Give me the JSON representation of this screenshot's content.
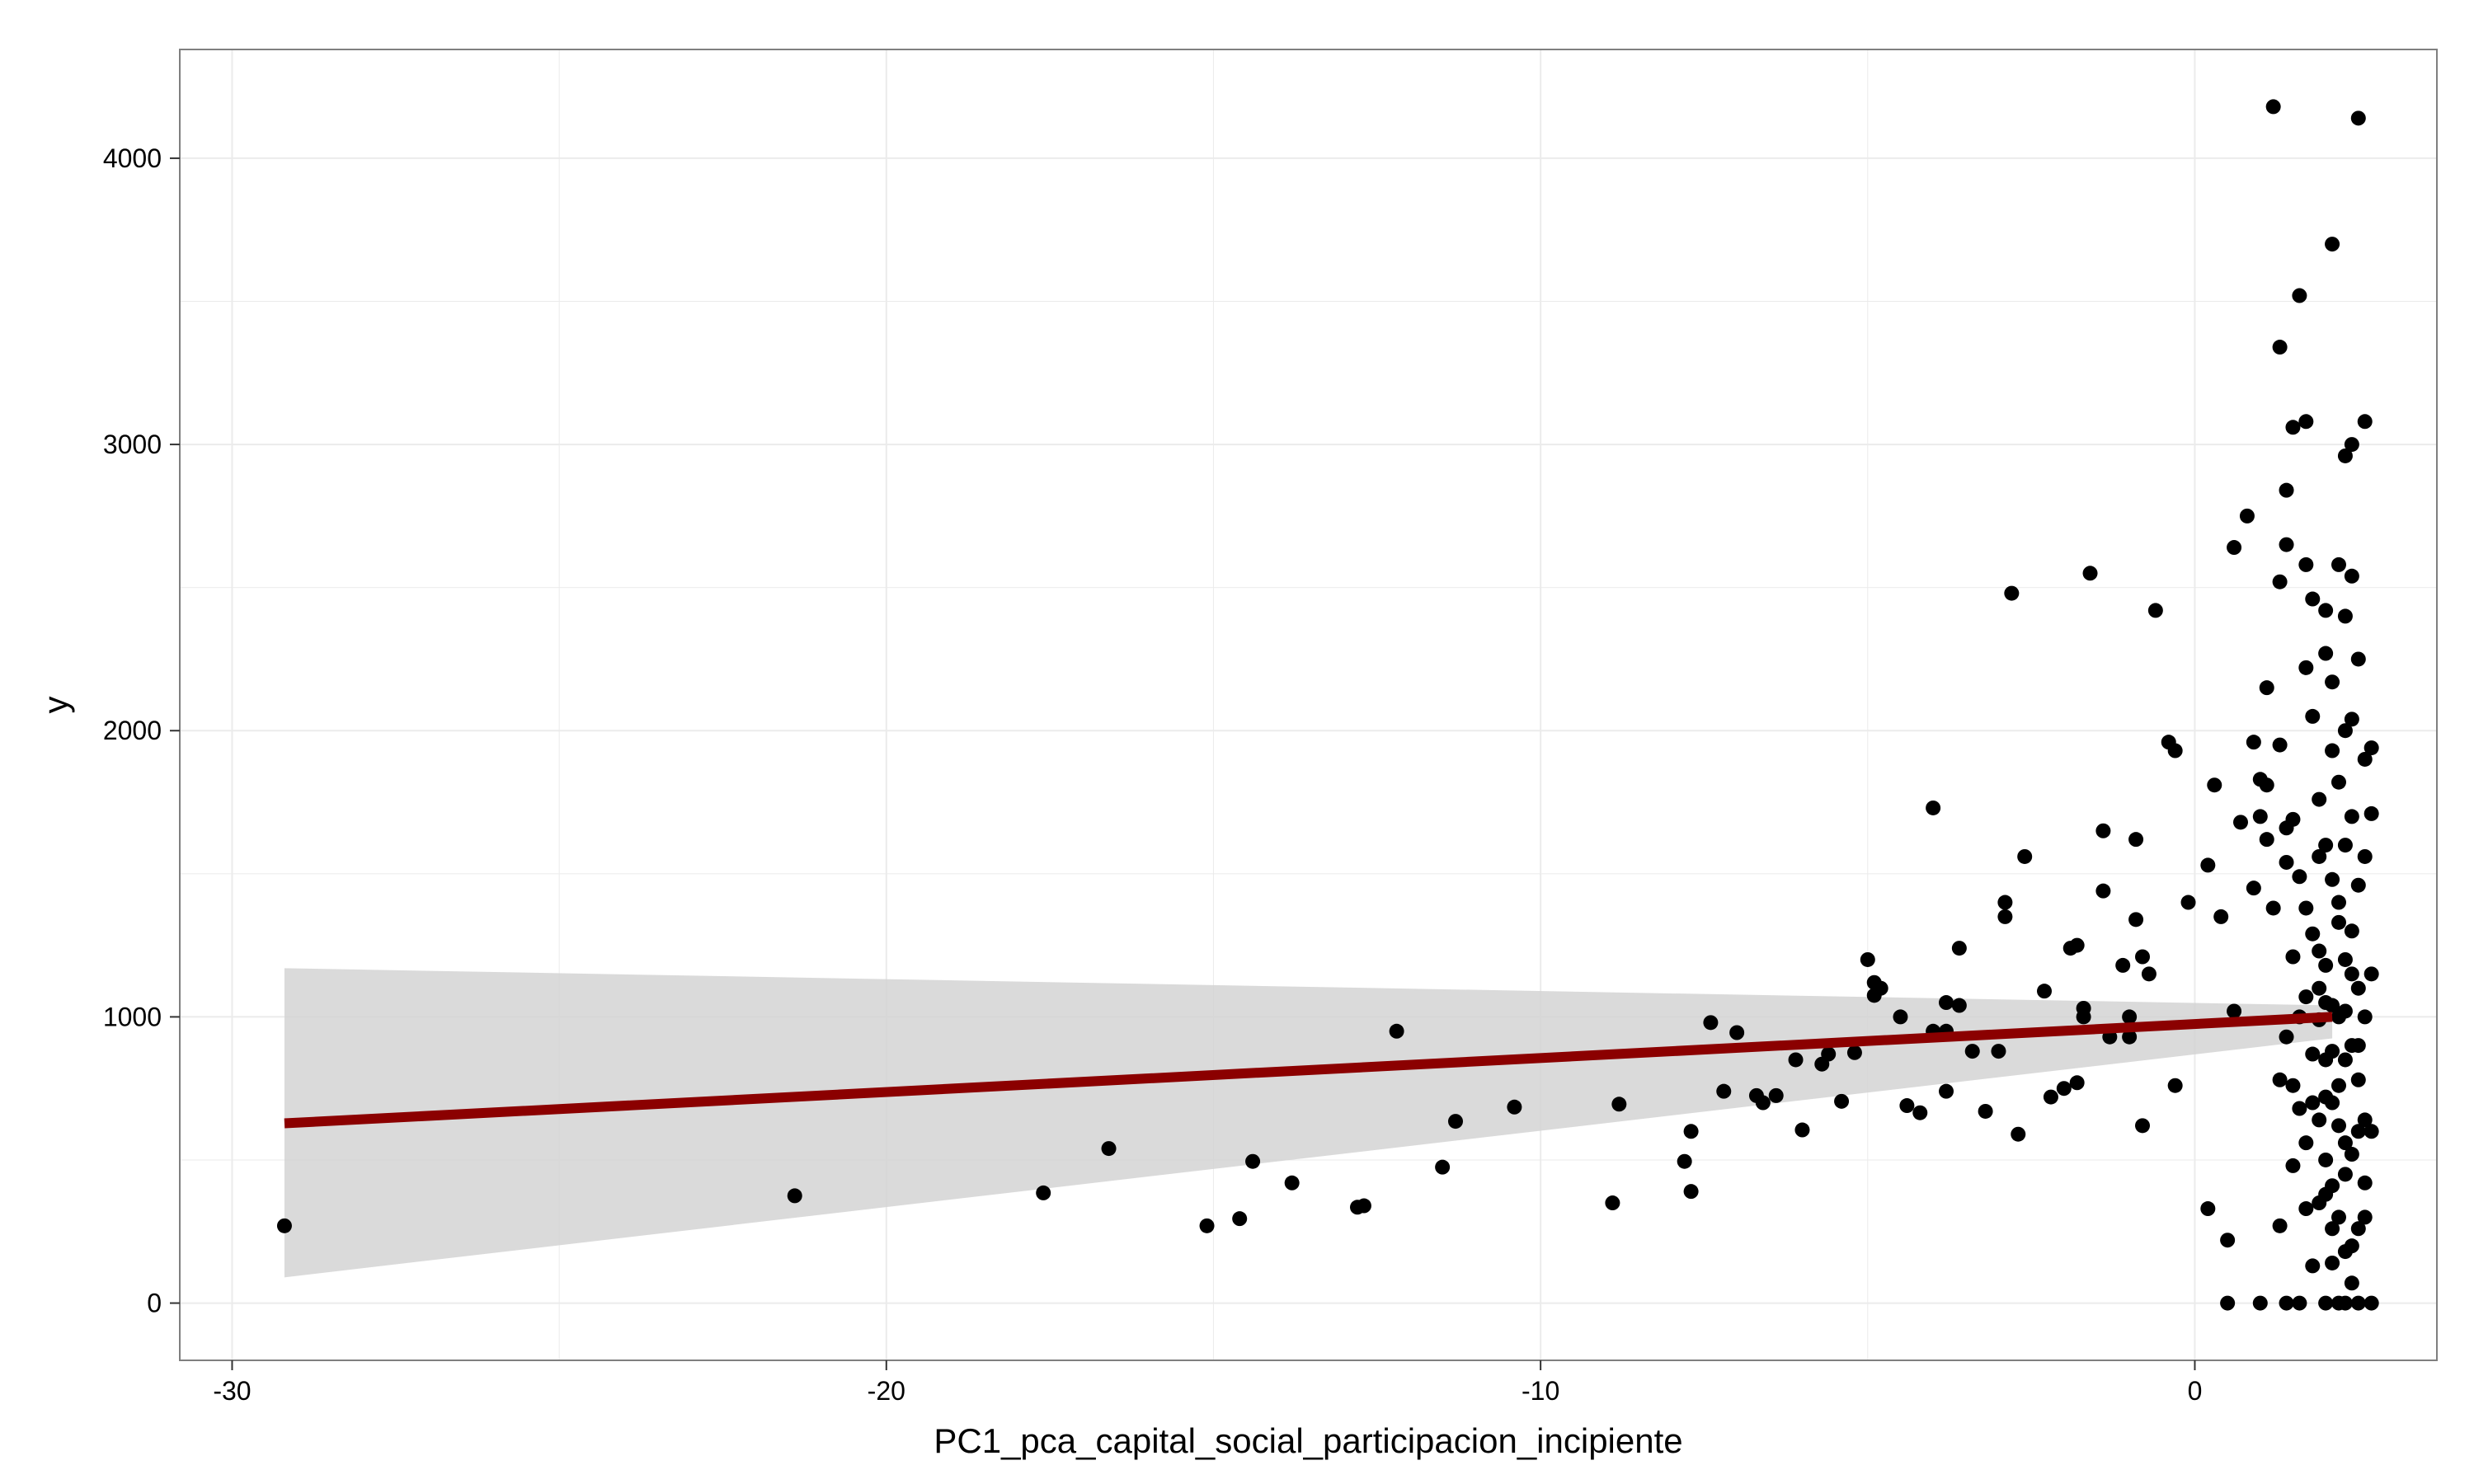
{
  "chart_data": {
    "type": "scatter",
    "title": "",
    "xlabel": "PC1_pca_capital_social_participacion_incipiente",
    "ylabel": "y",
    "xlim": [
      -30.8,
      3.7
    ],
    "ylim": [
      -200,
      4380
    ],
    "x_ticks": [
      -30,
      -20,
      -10,
      0
    ],
    "x_tick_labels": [
      "-30",
      "-20",
      "-10",
      "0"
    ],
    "y_ticks": [
      0,
      1000,
      2000,
      3000,
      4000
    ],
    "y_tick_labels": [
      "0",
      "1000",
      "2000",
      "3000",
      "4000"
    ],
    "grid": true,
    "legend": "none",
    "colors": {
      "points": "#000000",
      "fit_line": "#8b0000",
      "confidence_band": "#d3d3d3",
      "grid": "#ebebeb",
      "panel_border": "#7f7f7f"
    },
    "fit": {
      "method": "linear",
      "x_range": [
        -29.2,
        2.1
      ],
      "y_start": 628,
      "y_end": 1000,
      "band_lower": [
        [
          -29.2,
          90
        ],
        [
          2.1,
          925
        ]
      ],
      "band_upper": [
        [
          -29.2,
          1170
        ],
        [
          2.1,
          1040
        ]
      ]
    },
    "points": [
      [
        -29.2,
        270
      ],
      [
        -21.4,
        375
      ],
      [
        -17.6,
        385
      ],
      [
        -16.6,
        540
      ],
      [
        -15.1,
        270
      ],
      [
        -14.6,
        295
      ],
      [
        -14.4,
        495
      ],
      [
        -13.8,
        420
      ],
      [
        -12.8,
        335
      ],
      [
        -12.7,
        340
      ],
      [
        -12.2,
        950
      ],
      [
        -11.5,
        475
      ],
      [
        -11.3,
        635
      ],
      [
        -10.4,
        685
      ],
      [
        -8.9,
        350
      ],
      [
        -8.8,
        695
      ],
      [
        -7.8,
        495
      ],
      [
        -7.7,
        390
      ],
      [
        -7.7,
        600
      ],
      [
        -7.4,
        980
      ],
      [
        -7.2,
        740
      ],
      [
        -7.0,
        945
      ],
      [
        -6.7,
        725
      ],
      [
        -6.6,
        700
      ],
      [
        -6.4,
        725
      ],
      [
        -6.1,
        850
      ],
      [
        -6.0,
        605
      ],
      [
        -5.7,
        835
      ],
      [
        -5.6,
        870
      ],
      [
        -5.4,
        705
      ],
      [
        -5.2,
        875
      ],
      [
        -5.0,
        1200
      ],
      [
        -4.9,
        1075
      ],
      [
        -4.9,
        1120
      ],
      [
        -4.8,
        1100
      ],
      [
        -4.4,
        690
      ],
      [
        -4.5,
        1000
      ],
      [
        -4.2,
        665
      ],
      [
        -4.0,
        950
      ],
      [
        -3.8,
        950
      ],
      [
        -4.0,
        1730
      ],
      [
        -3.8,
        740
      ],
      [
        -3.8,
        1050
      ],
      [
        -3.6,
        1040
      ],
      [
        -3.6,
        1240
      ],
      [
        -3.4,
        880
      ],
      [
        -3.2,
        670
      ],
      [
        -3.0,
        880
      ],
      [
        -2.9,
        1350
      ],
      [
        -2.9,
        1400
      ],
      [
        -2.8,
        2480
      ],
      [
        -2.7,
        590
      ],
      [
        -2.6,
        1560
      ],
      [
        -2.3,
        1090
      ],
      [
        -2.2,
        720
      ],
      [
        -2.0,
        750
      ],
      [
        -1.9,
        1240
      ],
      [
        -1.8,
        1250
      ],
      [
        -1.8,
        770
      ],
      [
        -1.7,
        1030
      ],
      [
        -1.7,
        1000
      ],
      [
        -1.6,
        2550
      ],
      [
        -1.4,
        1650
      ],
      [
        -1.4,
        1440
      ],
      [
        -1.3,
        930
      ],
      [
        -1.1,
        1180
      ],
      [
        -1.0,
        1000
      ],
      [
        -1.0,
        930
      ],
      [
        -0.9,
        1620
      ],
      [
        -0.9,
        1340
      ],
      [
        -0.8,
        1210
      ],
      [
        -0.8,
        620
      ],
      [
        -0.7,
        1150
      ],
      [
        -0.6,
        2420
      ],
      [
        -0.4,
        1960
      ],
      [
        -0.3,
        1930
      ],
      [
        -0.3,
        760
      ],
      [
        -0.1,
        1400
      ],
      [
        0.2,
        1530
      ],
      [
        0.2,
        330
      ],
      [
        0.3,
        1810
      ],
      [
        0.4,
        1350
      ],
      [
        0.5,
        220
      ],
      [
        0.6,
        2640
      ],
      [
        0.6,
        1020
      ],
      [
        0.5,
        0
      ],
      [
        0.7,
        1680
      ],
      [
        0.8,
        2750
      ],
      [
        0.9,
        1960
      ],
      [
        0.9,
        1450
      ],
      [
        1.0,
        1830
      ],
      [
        1.0,
        1700
      ],
      [
        1.1,
        2150
      ],
      [
        1.1,
        1810
      ],
      [
        1.1,
        1620
      ],
      [
        1.2,
        4180
      ],
      [
        1.2,
        1380
      ],
      [
        1.3,
        3340
      ],
      [
        1.3,
        2520
      ],
      [
        1.3,
        1950
      ],
      [
        1.3,
        780
      ],
      [
        1.3,
        270
      ],
      [
        1.4,
        2650
      ],
      [
        1.4,
        2840
      ],
      [
        1.4,
        1660
      ],
      [
        1.4,
        1540
      ],
      [
        1.4,
        930
      ],
      [
        1.4,
        0
      ],
      [
        1.5,
        3060
      ],
      [
        1.5,
        1690
      ],
      [
        1.5,
        1210
      ],
      [
        1.5,
        760
      ],
      [
        1.5,
        480
      ],
      [
        1.6,
        3520
      ],
      [
        1.6,
        1490
      ],
      [
        1.6,
        1000
      ],
      [
        1.6,
        680
      ],
      [
        1.7,
        3080
      ],
      [
        1.7,
        2580
      ],
      [
        1.7,
        2220
      ],
      [
        1.7,
        1380
      ],
      [
        1.7,
        1070
      ],
      [
        1.7,
        560
      ],
      [
        1.7,
        330
      ],
      [
        1.8,
        2460
      ],
      [
        1.8,
        2050
      ],
      [
        1.8,
        1290
      ],
      [
        1.8,
        870
      ],
      [
        1.8,
        130
      ],
      [
        1.9,
        1760
      ],
      [
        1.9,
        1560
      ],
      [
        1.9,
        1230
      ],
      [
        1.9,
        990
      ],
      [
        1.9,
        640
      ],
      [
        1.9,
        350
      ],
      [
        2.0,
        2270
      ],
      [
        2.0,
        2420
      ],
      [
        2.0,
        1600
      ],
      [
        2.0,
        1180
      ],
      [
        2.0,
        850
      ],
      [
        2.0,
        500
      ],
      [
        2.0,
        0
      ],
      [
        2.1,
        3700
      ],
      [
        2.1,
        2170
      ],
      [
        2.1,
        1930
      ],
      [
        2.1,
        1480
      ],
      [
        2.1,
        1040
      ],
      [
        2.1,
        700
      ],
      [
        2.1,
        410
      ],
      [
        2.1,
        140
      ],
      [
        2.2,
        2580
      ],
      [
        2.2,
        1820
      ],
      [
        2.2,
        1400
      ],
      [
        2.2,
        1000
      ],
      [
        2.2,
        620
      ],
      [
        2.2,
        300
      ],
      [
        2.2,
        0
      ],
      [
        2.3,
        2960
      ],
      [
        2.3,
        2400
      ],
      [
        2.3,
        2000
      ],
      [
        2.3,
        1600
      ],
      [
        2.3,
        1200
      ],
      [
        2.3,
        850
      ],
      [
        2.3,
        450
      ],
      [
        2.3,
        180
      ],
      [
        2.3,
        0
      ],
      [
        2.4,
        3000
      ],
      [
        2.4,
        2540
      ],
      [
        2.4,
        2040
      ],
      [
        2.4,
        1700
      ],
      [
        2.4,
        1300
      ],
      [
        2.4,
        900
      ],
      [
        2.4,
        520
      ],
      [
        2.4,
        70
      ],
      [
        2.5,
        4140
      ],
      [
        2.5,
        2250
      ],
      [
        2.5,
        1460
      ],
      [
        2.5,
        1100
      ],
      [
        2.5,
        780
      ],
      [
        2.5,
        260
      ],
      [
        2.5,
        0
      ],
      [
        2.6,
        3080
      ],
      [
        2.6,
        1900
      ],
      [
        2.6,
        1560
      ],
      [
        2.6,
        1000
      ],
      [
        2.6,
        640
      ],
      [
        2.6,
        300
      ],
      [
        2.7,
        1940
      ],
      [
        2.7,
        1710
      ],
      [
        2.7,
        1150
      ],
      [
        2.7,
        600
      ],
      [
        2.7,
        0
      ],
      [
        1.0,
        0
      ],
      [
        1.6,
        0
      ],
      [
        1.9,
        1100
      ],
      [
        2.0,
        380
      ],
      [
        2.2,
        760
      ],
      [
        2.3,
        560
      ],
      [
        2.4,
        200
      ],
      [
        2.5,
        900
      ],
      [
        2.6,
        420
      ],
      [
        2.1,
        260
      ],
      [
        2.0,
        1050
      ],
      [
        1.8,
        700
      ],
      [
        2.2,
        1330
      ],
      [
        2.4,
        1150
      ],
      [
        2.5,
        600
      ],
      [
        2.3,
        1020
      ],
      [
        2.1,
        880
      ],
      [
        2.0,
        720
      ]
    ]
  }
}
